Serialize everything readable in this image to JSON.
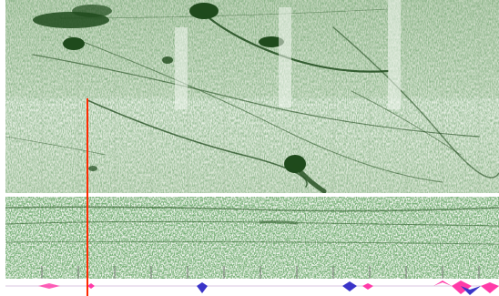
{
  "viewer": {
    "colors": {
      "background": "#ffffff",
      "echo_light": "#e8f0e4",
      "echo_mid": "#b9d0b2",
      "echo_dark": "#173d16",
      "cursor": "#ff2a00",
      "strip_pink": "#ff3aa8",
      "strip_blue": "#3a34c8"
    },
    "panels": {
      "upper_echogram": {
        "kind": "echogram"
      },
      "lower_echogram": {
        "kind": "echogram"
      },
      "ping_strip": {
        "kind": "signal-strip"
      }
    },
    "cursor": {
      "kind": "time-cursor"
    }
  }
}
